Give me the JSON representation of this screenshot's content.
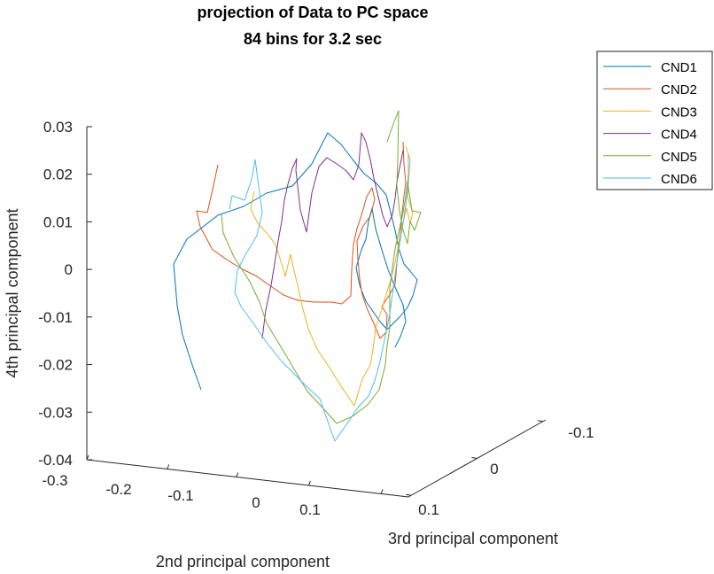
{
  "chart_data": {
    "type": "line",
    "projection": "3d",
    "title": [
      "projection of Data to PC space",
      "84 bins for 3.2 sec"
    ],
    "xlabel": "2nd principal component",
    "ylabel": "3rd principal component",
    "zlabel": "4th principal component",
    "x_ticks": [
      "-0.3",
      "-0.2",
      "-0.1",
      "0",
      "0.1"
    ],
    "y_ticks": [
      "-0.1",
      "0",
      "0.1"
    ],
    "z_ticks": [
      "0.03",
      "0.02",
      "0.01",
      "0",
      "-0.01",
      "-0.02",
      "-0.03",
      "-0.04"
    ],
    "z_tick_values": [
      0.03,
      0.02,
      0.01,
      0,
      -0.01,
      -0.02,
      -0.03,
      -0.04
    ],
    "zlim": [
      -0.04,
      0.03
    ],
    "grid": false,
    "legend_position": "top-right",
    "series": [
      {
        "name": "CND1",
        "color": "#0072BD",
        "points": [
          [
            227,
            440
          ],
          [
            218,
            415
          ],
          [
            206,
            378
          ],
          [
            200,
            345
          ],
          [
            196,
            298
          ],
          [
            211,
            270
          ],
          [
            246,
            243
          ],
          [
            275,
            233
          ],
          [
            301,
            218
          ],
          [
            330,
            210
          ],
          [
            352,
            185
          ],
          [
            370,
            150
          ],
          [
            385,
            163
          ],
          [
            398,
            180
          ],
          [
            411,
            196
          ],
          [
            424,
            206
          ],
          [
            436,
            220
          ],
          [
            441,
            240
          ],
          [
            446,
            260
          ],
          [
            450,
            280
          ],
          [
            456,
            298
          ],
          [
            463,
            306
          ],
          [
            471,
            316
          ],
          [
            466,
            334
          ],
          [
            460,
            347
          ],
          [
            452,
            357
          ],
          [
            444,
            365
          ],
          [
            437,
            372
          ],
          [
            429,
            363
          ],
          [
            422,
            353
          ],
          [
            413,
            340
          ],
          [
            406,
            322
          ],
          [
            402,
            302
          ],
          [
            408,
            282
          ],
          [
            413,
            270
          ],
          [
            416,
            250
          ],
          [
            420,
            235
          ],
          [
            424,
            258
          ],
          [
            431,
            282
          ],
          [
            438,
            304
          ],
          [
            445,
            322
          ],
          [
            455,
            344
          ],
          [
            458,
            363
          ],
          [
            452,
            380
          ],
          [
            446,
            392
          ]
        ]
      },
      {
        "name": "CND2",
        "color": "#D95319",
        "points": [
          [
            246,
            186
          ],
          [
            240,
            214
          ],
          [
            234,
            240
          ],
          [
            222,
            238
          ],
          [
            226,
            256
          ],
          [
            240,
            282
          ],
          [
            262,
            297
          ],
          [
            276,
            305
          ],
          [
            290,
            312
          ],
          [
            304,
            322
          ],
          [
            320,
            333
          ],
          [
            336,
            339
          ],
          [
            354,
            341
          ],
          [
            374,
            341
          ],
          [
            386,
            343
          ],
          [
            396,
            334
          ],
          [
            397,
            305
          ],
          [
            399,
            276
          ],
          [
            403,
            258
          ],
          [
            408,
            243
          ],
          [
            414,
            222
          ],
          [
            420,
            212
          ],
          [
            423,
            225
          ],
          [
            418,
            244
          ],
          [
            410,
            255
          ],
          [
            403,
            272
          ],
          [
            404,
            293
          ],
          [
            406,
            315
          ],
          [
            409,
            333
          ],
          [
            415,
            350
          ],
          [
            422,
            365
          ],
          [
            429,
            382
          ],
          [
            436,
            375
          ],
          [
            437,
            355
          ],
          [
            431,
            346
          ],
          [
            439,
            334
          ],
          [
            446,
            321
          ],
          [
            448,
            298
          ],
          [
            450,
            278
          ],
          [
            452,
            260
          ],
          [
            454,
            240
          ],
          [
            456,
            222
          ],
          [
            458,
            205
          ],
          [
            456,
            185
          ],
          [
            455,
            160
          ]
        ]
      },
      {
        "name": "CND3",
        "color": "#EDB120",
        "points": [
          [
            287,
            216
          ],
          [
            283,
            236
          ],
          [
            291,
            252
          ],
          [
            302,
            264
          ],
          [
            311,
            276
          ],
          [
            318,
            298
          ],
          [
            322,
            312
          ],
          [
            328,
            287
          ],
          [
            331,
            302
          ],
          [
            336,
            322
          ],
          [
            341,
            345
          ],
          [
            348,
            371
          ],
          [
            358,
            394
          ],
          [
            374,
            418
          ],
          [
            385,
            436
          ],
          [
            400,
            458
          ],
          [
            409,
            428
          ],
          [
            418,
            412
          ],
          [
            421,
            395
          ],
          [
            424,
            371
          ],
          [
            431,
            349
          ],
          [
            436,
            332
          ],
          [
            441,
            316
          ],
          [
            446,
            296
          ],
          [
            449,
            281
          ],
          [
            452,
            262
          ],
          [
            456,
            247
          ],
          [
            459,
            235
          ],
          [
            463,
            252
          ],
          [
            466,
            240
          ],
          [
            460,
            222
          ],
          [
            461,
            208
          ],
          [
            463,
            180
          ],
          [
            458,
            165
          ]
        ]
      },
      {
        "name": "CND4",
        "color": "#7E2F8E",
        "points": [
          [
            296,
            382
          ],
          [
            300,
            350
          ],
          [
            306,
            322
          ],
          [
            310,
            298
          ],
          [
            314,
            272
          ],
          [
            318,
            250
          ],
          [
            321,
            226
          ],
          [
            325,
            208
          ],
          [
            330,
            190
          ],
          [
            335,
            179
          ],
          [
            334,
            192
          ],
          [
            339,
            237
          ],
          [
            346,
            262
          ],
          [
            352,
            218
          ],
          [
            360,
            188
          ],
          [
            369,
            178
          ],
          [
            380,
            185
          ],
          [
            390,
            192
          ],
          [
            399,
            203
          ],
          [
            405,
            186
          ],
          [
            408,
            150
          ],
          [
            413,
            160
          ],
          [
            418,
            180
          ],
          [
            422,
            201
          ],
          [
            427,
            222
          ],
          [
            432,
            243
          ],
          [
            437,
            256
          ],
          [
            443,
            242
          ],
          [
            446,
            224
          ],
          [
            448,
            206
          ],
          [
            451,
            190
          ],
          [
            455,
            170
          ]
        ]
      },
      {
        "name": "CND5",
        "color": "#77AC30",
        "points": [
          [
            250,
            242
          ],
          [
            252,
            263
          ],
          [
            264,
            290
          ],
          [
            282,
            318
          ],
          [
            293,
            341
          ],
          [
            301,
            365
          ],
          [
            310,
            380
          ],
          [
            321,
            398
          ],
          [
            334,
            420
          ],
          [
            347,
            442
          ],
          [
            364,
            460
          ],
          [
            380,
            478
          ],
          [
            398,
            470
          ],
          [
            415,
            457
          ],
          [
            428,
            440
          ],
          [
            435,
            412
          ],
          [
            437,
            390
          ],
          [
            440,
            370
          ],
          [
            440,
            350
          ],
          [
            440,
            326
          ],
          [
            443,
            302
          ],
          [
            446,
            281
          ],
          [
            451,
            258
          ],
          [
            455,
            240
          ],
          [
            458,
            222
          ],
          [
            460,
            205
          ],
          [
            465,
            238
          ],
          [
            475,
            240
          ],
          [
            468,
            260
          ],
          [
            463,
            250
          ],
          [
            460,
            275
          ],
          [
            455,
            260
          ],
          [
            451,
            238
          ],
          [
            448,
            210
          ],
          [
            449,
            180
          ],
          [
            450,
            125
          ],
          [
            444,
            140
          ],
          [
            437,
            160
          ]
        ]
      },
      {
        "name": "CND6",
        "color": "#4DBEEE",
        "points": [
          [
            259,
            236
          ],
          [
            262,
            221
          ],
          [
            276,
            226
          ],
          [
            284,
            203
          ],
          [
            288,
            180
          ],
          [
            292,
            210
          ],
          [
            296,
            240
          ],
          [
            290,
            266
          ],
          [
            278,
            286
          ],
          [
            268,
            305
          ],
          [
            265,
            330
          ],
          [
            272,
            346
          ],
          [
            286,
            365
          ],
          [
            302,
            388
          ],
          [
            318,
            408
          ],
          [
            336,
            426
          ],
          [
            350,
            440
          ],
          [
            361,
            450
          ],
          [
            368,
            470
          ],
          [
            378,
            498
          ],
          [
            392,
            478
          ],
          [
            404,
            460
          ],
          [
            416,
            447
          ],
          [
            423,
            430
          ],
          [
            428,
            412
          ],
          [
            432,
            394
          ],
          [
            436,
            374
          ],
          [
            440,
            354
          ],
          [
            443,
            332
          ],
          [
            446,
            310
          ],
          [
            449,
            290
          ],
          [
            452,
            270
          ],
          [
            455,
            252
          ],
          [
            458,
            232
          ],
          [
            460,
            214
          ],
          [
            461,
            196
          ],
          [
            461,
            175
          ]
        ]
      }
    ]
  }
}
